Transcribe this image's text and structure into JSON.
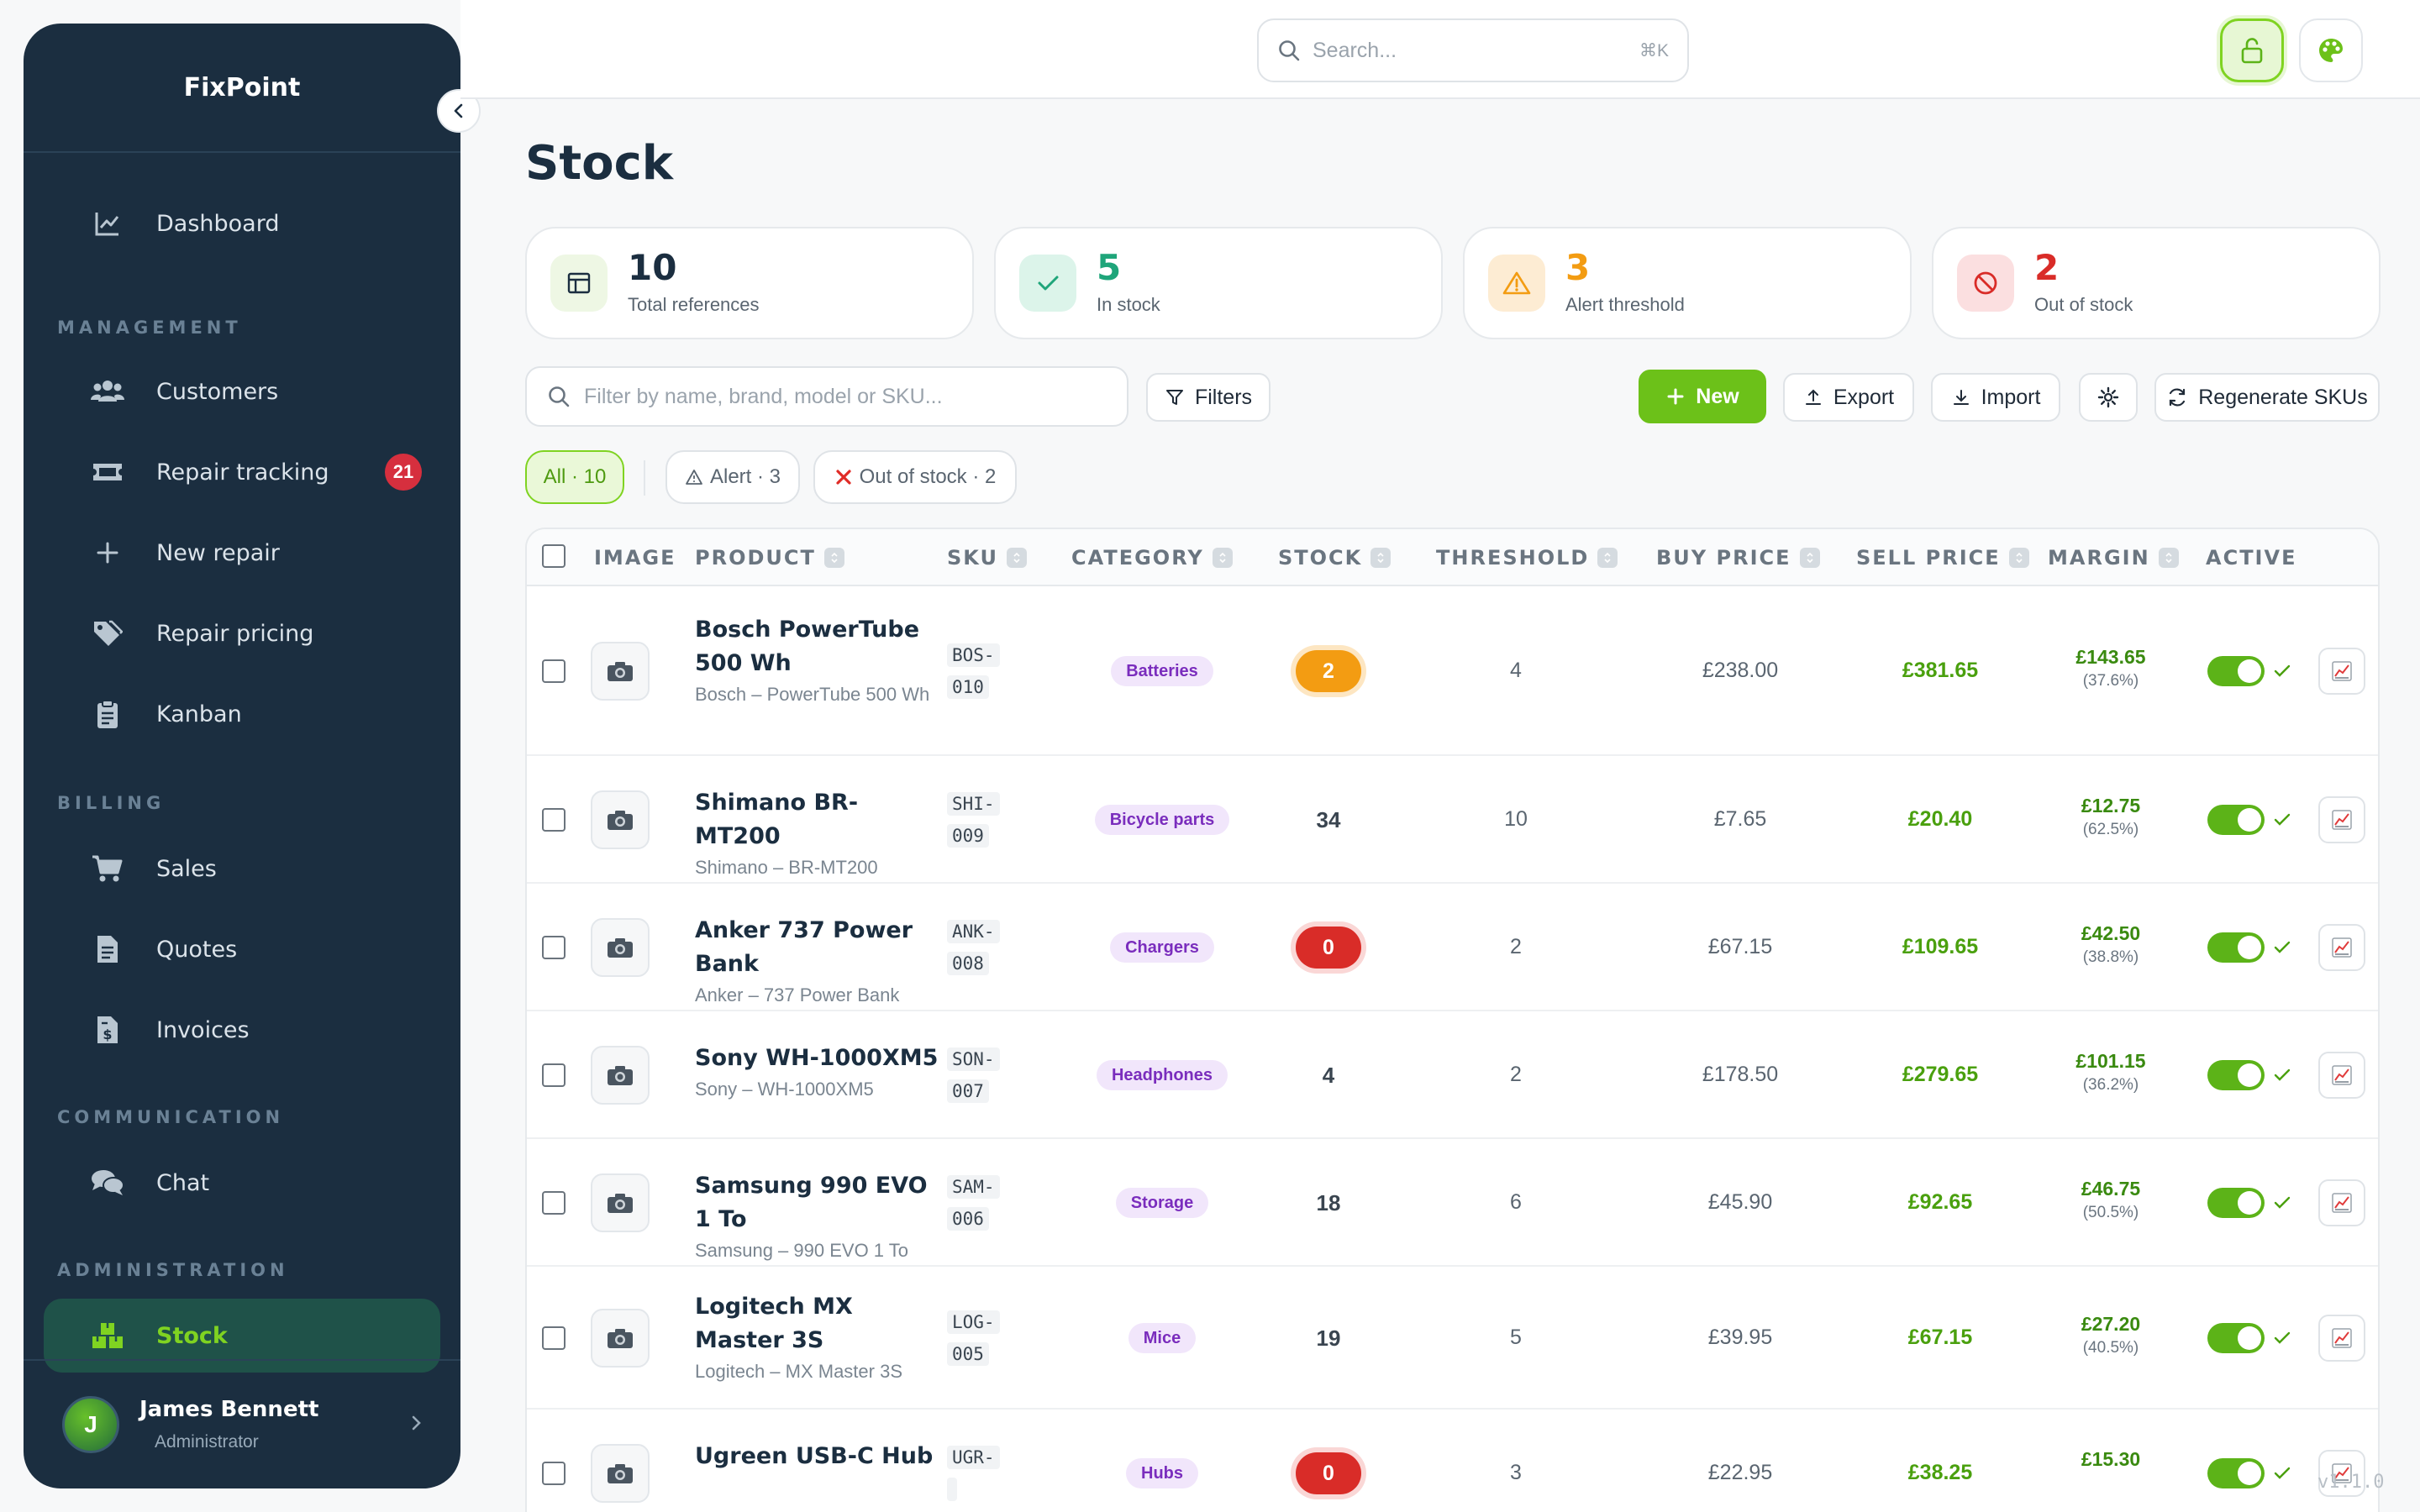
{
  "app": {
    "brand": "FixPoint",
    "version": "v1.1.0"
  },
  "sidebar": {
    "items": [
      {
        "label": "Dashboard"
      },
      {
        "label": "Customers"
      },
      {
        "label": "Repair tracking",
        "badge": "21"
      },
      {
        "label": "New repair"
      },
      {
        "label": "Repair pricing"
      },
      {
        "label": "Kanban"
      },
      {
        "label": "Sales"
      },
      {
        "label": "Quotes"
      },
      {
        "label": "Invoices"
      },
      {
        "label": "Chat"
      },
      {
        "label": "Stock"
      }
    ],
    "sections": {
      "management": "MANAGEMENT",
      "billing": "BILLING",
      "communication": "COMMUNICATION",
      "administration": "ADMINISTRATION"
    },
    "user": {
      "initial": "J",
      "name": "James Bennett",
      "role": "Administrator"
    }
  },
  "topbar": {
    "search_placeholder": "Search...",
    "shortcut": "⌘K"
  },
  "page": {
    "title": "Stock"
  },
  "stats": [
    {
      "value": "10",
      "label": "Total references",
      "color": "#1b2e40"
    },
    {
      "value": "5",
      "label": "In stock",
      "color": "#1fa57a"
    },
    {
      "value": "3",
      "label": "Alert threshold",
      "color": "#f39c12"
    },
    {
      "value": "2",
      "label": "Out of stock",
      "color": "#d92c28"
    }
  ],
  "toolbar": {
    "filter_placeholder": "Filter by name, brand, model or SKU...",
    "filters": "Filters",
    "new": "New",
    "export": "Export",
    "import": "Import",
    "regenerate": "Regenerate SKUs"
  },
  "chips": {
    "all": "All · 10",
    "alert": "Alert · 3",
    "out": "Out of stock · 2"
  },
  "table": {
    "headers": {
      "image": "IMAGE",
      "product": "PRODUCT",
      "sku": "SKU",
      "category": "CATEGORY",
      "stock": "STOCK",
      "threshold": "THRESHOLD",
      "buy": "BUY PRICE",
      "sell": "SELL PRICE",
      "margin": "MARGIN",
      "active": "ACTIVE"
    },
    "rows": [
      {
        "name": "Bosch PowerTube 500 Wh",
        "sub": "Bosch – PowerTube 500 Wh",
        "sku1": "BOS-",
        "sku2": "010",
        "category": "Batteries",
        "stock": "2",
        "stock_state": "warn",
        "threshold": "4",
        "buy": "£238.00",
        "sell": "£381.65",
        "margin": "£143.65",
        "margin_pct": "(37.6%)",
        "active": true
      },
      {
        "name": "Shimano BR-MT200",
        "sub": "Shimano – BR-MT200",
        "sku1": "SHI-",
        "sku2": "009",
        "category": "Bicycle parts",
        "stock": "34",
        "stock_state": "ok",
        "threshold": "10",
        "buy": "£7.65",
        "sell": "£20.40",
        "margin": "£12.75",
        "margin_pct": "(62.5%)",
        "active": true
      },
      {
        "name": "Anker 737 Power Bank",
        "sub": "Anker – 737 Power Bank",
        "sku1": "ANK-",
        "sku2": "008",
        "category": "Chargers",
        "stock": "0",
        "stock_state": "out",
        "threshold": "2",
        "buy": "£67.15",
        "sell": "£109.65",
        "margin": "£42.50",
        "margin_pct": "(38.8%)",
        "active": true
      },
      {
        "name": "Sony WH-1000XM5",
        "sub": "Sony – WH-1000XM5",
        "sku1": "SON-",
        "sku2": "007",
        "category": "Headphones",
        "stock": "4",
        "stock_state": "ok",
        "threshold": "2",
        "buy": "£178.50",
        "sell": "£279.65",
        "margin": "£101.15",
        "margin_pct": "(36.2%)",
        "active": true
      },
      {
        "name": "Samsung 990 EVO 1 To",
        "sub": "Samsung – 990 EVO 1 To",
        "sku1": "SAM-",
        "sku2": "006",
        "category": "Storage",
        "stock": "18",
        "stock_state": "ok",
        "threshold": "6",
        "buy": "£45.90",
        "sell": "£92.65",
        "margin": "£46.75",
        "margin_pct": "(50.5%)",
        "active": true
      },
      {
        "name": "Logitech MX Master 3S",
        "sub": "Logitech – MX Master 3S",
        "sku1": "LOG-",
        "sku2": "005",
        "category": "Mice",
        "stock": "19",
        "stock_state": "ok",
        "threshold": "5",
        "buy": "£39.95",
        "sell": "£67.15",
        "margin": "£27.20",
        "margin_pct": "(40.5%)",
        "active": true
      },
      {
        "name": "Ugreen USB-C Hub",
        "sub": "",
        "sku1": "UGR-",
        "sku2": "",
        "category": "Hubs",
        "stock": "0",
        "stock_state": "out",
        "threshold": "3",
        "buy": "£22.95",
        "sell": "£38.25",
        "margin": "£15.30",
        "margin_pct": "",
        "active": true
      }
    ]
  },
  "colors": {
    "accent": "#6cc119",
    "sidebar": "#1b2e40",
    "danger": "#d92c28",
    "warning": "#f39c12"
  }
}
